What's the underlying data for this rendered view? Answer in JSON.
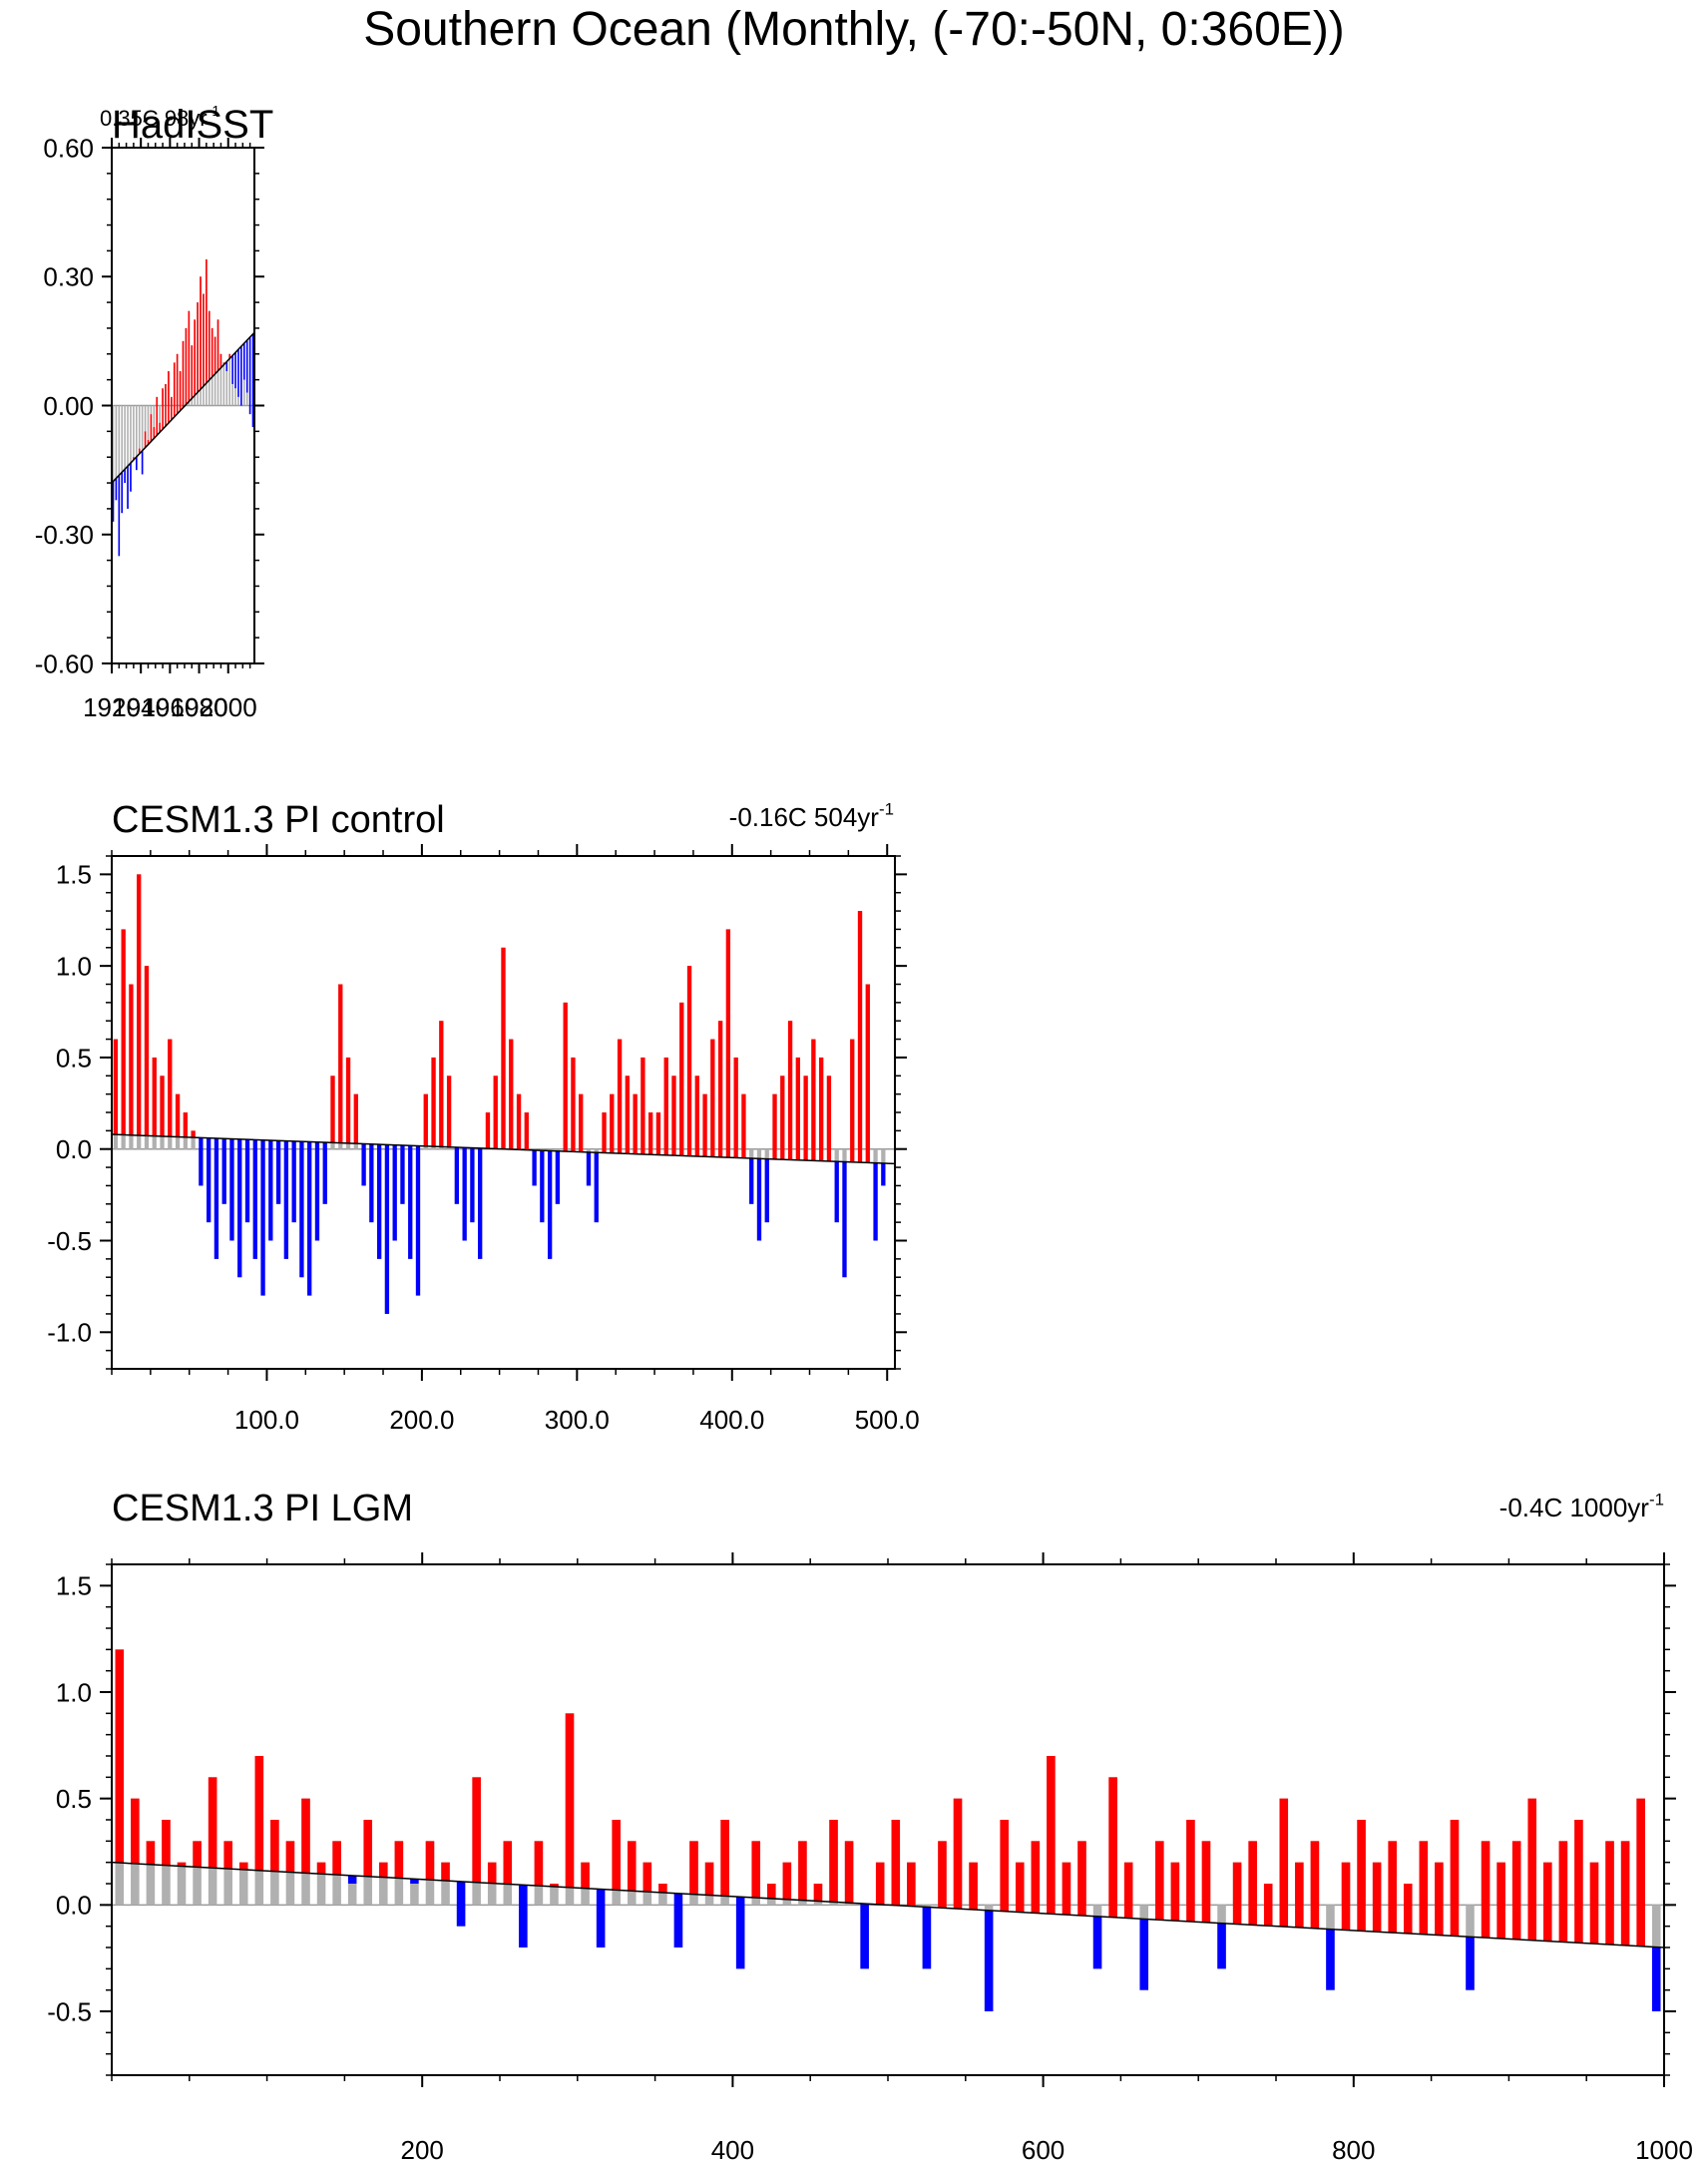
{
  "figure": {
    "title": "Southern Ocean (Monthly, (-70:-50N, 0:360E))"
  },
  "colors": {
    "positive": "#ff0000",
    "negative": "#0000ff",
    "raw": "#b0b0b0",
    "axis": "#000000",
    "zero_line": "#999999"
  },
  "chart_data": [
    {
      "type": "bar",
      "id": "hadisst",
      "title": "HadISST",
      "trend_label": "0.35C 98yr",
      "trend_label_superscript": "-1",
      "x_range": [
        1920,
        2018
      ],
      "x_ticks": [
        1920,
        1940,
        1960,
        1980,
        2000
      ],
      "x_tick_labels": [
        "1920",
        "1940",
        "1960",
        "1980",
        "2000"
      ],
      "y_range": [
        -0.6,
        0.6
      ],
      "y_ticks": [
        -0.6,
        -0.3,
        0.0,
        0.3,
        0.6
      ],
      "y_tick_labels": [
        "-0.60",
        "-0.30",
        "0.00",
        "0.30",
        "0.60"
      ],
      "y_minor_step": 0.06,
      "trend_line": {
        "start": -0.18,
        "end": 0.17
      },
      "series": {
        "x_start": 1920,
        "x_step": 2,
        "values": [
          -0.27,
          -0.22,
          -0.35,
          -0.25,
          -0.18,
          -0.24,
          -0.2,
          -0.12,
          -0.15,
          -0.1,
          -0.16,
          -0.06,
          -0.08,
          -0.02,
          -0.05,
          0.02,
          -0.04,
          0.04,
          0.05,
          0.08,
          0.02,
          0.1,
          0.12,
          0.08,
          0.15,
          0.18,
          0.22,
          0.14,
          0.2,
          0.24,
          0.3,
          0.26,
          0.34,
          0.22,
          0.18,
          0.16,
          0.2,
          0.12,
          0.1,
          0.08,
          0.12,
          0.05,
          0.04,
          0.02,
          0.0,
          0.06,
          0.03,
          -0.02,
          -0.05,
          -0.08
        ]
      }
    },
    {
      "type": "bar",
      "id": "pi-control",
      "title": "CESM1.3 PI control",
      "trend_label": "-0.16C 504yr",
      "trend_label_superscript": "-1",
      "x_range": [
        0,
        505
      ],
      "x_ticks": [
        100,
        200,
        300,
        400,
        500
      ],
      "x_tick_labels": [
        "100.0",
        "200.0",
        "300.0",
        "400.0",
        "500.0"
      ],
      "y_range": [
        -1.2,
        1.6
      ],
      "y_ticks": [
        -1.0,
        -0.5,
        0.0,
        0.5,
        1.0,
        1.5
      ],
      "y_tick_labels": [
        "-1.0",
        "-0.5",
        "0.0",
        "0.5",
        "1.0",
        "1.5"
      ],
      "y_minor_step": 0.1,
      "trend_line": {
        "start": 0.08,
        "end": -0.08
      },
      "series": {
        "x_start": 0,
        "x_step": 5,
        "values": [
          0.6,
          1.2,
          0.9,
          1.5,
          1.0,
          0.5,
          0.4,
          0.6,
          0.3,
          0.2,
          0.1,
          -0.2,
          -0.4,
          -0.6,
          -0.3,
          -0.5,
          -0.7,
          -0.4,
          -0.6,
          -0.8,
          -0.5,
          -0.3,
          -0.6,
          -0.4,
          -0.7,
          -0.8,
          -0.5,
          -0.3,
          0.4,
          0.9,
          0.5,
          0.3,
          -0.2,
          -0.4,
          -0.6,
          -0.9,
          -0.5,
          -0.3,
          -0.6,
          -0.8,
          0.3,
          0.5,
          0.7,
          0.4,
          -0.3,
          -0.5,
          -0.4,
          -0.6,
          0.2,
          0.4,
          1.1,
          0.6,
          0.3,
          0.2,
          -0.2,
          -0.4,
          -0.6,
          -0.3,
          0.8,
          0.5,
          0.3,
          -0.2,
          -0.4,
          0.2,
          0.3,
          0.6,
          0.4,
          0.3,
          0.5,
          0.2,
          0.2,
          0.5,
          0.4,
          0.8,
          1.0,
          0.4,
          0.3,
          0.6,
          0.7,
          1.2,
          0.5,
          0.3,
          -0.3,
          -0.5,
          -0.4,
          0.3,
          0.4,
          0.7,
          0.5,
          0.4,
          0.6,
          0.5,
          0.4,
          -0.4,
          -0.7,
          0.6,
          1.3,
          0.9,
          -0.5,
          -0.2
        ]
      }
    },
    {
      "type": "bar",
      "id": "pi-lgm",
      "title": "CESM1.3 PI LGM",
      "trend_label": "-0.4C 1000yr",
      "trend_label_superscript": "-1",
      "x_range": [
        0,
        1000
      ],
      "x_ticks": [
        200,
        400,
        600,
        800,
        1000
      ],
      "x_tick_labels": [
        "200",
        "400",
        "600",
        "800",
        "1000"
      ],
      "y_range": [
        -0.8,
        1.6
      ],
      "y_ticks": [
        -0.5,
        0.0,
        0.5,
        1.0,
        1.5
      ],
      "y_tick_labels": [
        "-0.5",
        "0.0",
        "0.5",
        "1.0",
        "1.5"
      ],
      "y_minor_step": 0.1,
      "trend_line": {
        "start": 0.2,
        "end": -0.2
      },
      "series": {
        "x_start": 0,
        "x_step": 10,
        "values": [
          1.2,
          0.5,
          0.3,
          0.4,
          0.2,
          0.3,
          0.6,
          0.3,
          0.2,
          0.7,
          0.4,
          0.3,
          0.5,
          0.2,
          0.3,
          0.1,
          0.4,
          0.2,
          0.3,
          0.1,
          0.3,
          0.2,
          -0.1,
          0.6,
          0.2,
          0.3,
          -0.2,
          0.3,
          0.1,
          0.9,
          0.2,
          -0.2,
          0.4,
          0.3,
          0.2,
          0.1,
          -0.2,
          0.3,
          0.2,
          0.4,
          -0.3,
          0.3,
          0.1,
          0.2,
          0.3,
          0.1,
          0.4,
          0.3,
          -0.3,
          0.2,
          0.4,
          0.2,
          -0.3,
          0.3,
          0.5,
          0.2,
          -0.5,
          0.4,
          0.2,
          0.3,
          0.7,
          0.2,
          0.3,
          -0.3,
          0.6,
          0.2,
          -0.4,
          0.3,
          0.2,
          0.4,
          0.3,
          -0.3,
          0.2,
          0.3,
          0.1,
          0.5,
          0.2,
          0.3,
          -0.4,
          0.2,
          0.4,
          0.2,
          0.3,
          0.1,
          0.3,
          0.2,
          0.4,
          -0.4,
          0.3,
          0.2,
          0.3,
          0.5,
          0.2,
          0.3,
          0.4,
          0.2,
          0.3,
          0.3,
          0.5,
          -0.5
        ]
      }
    }
  ]
}
